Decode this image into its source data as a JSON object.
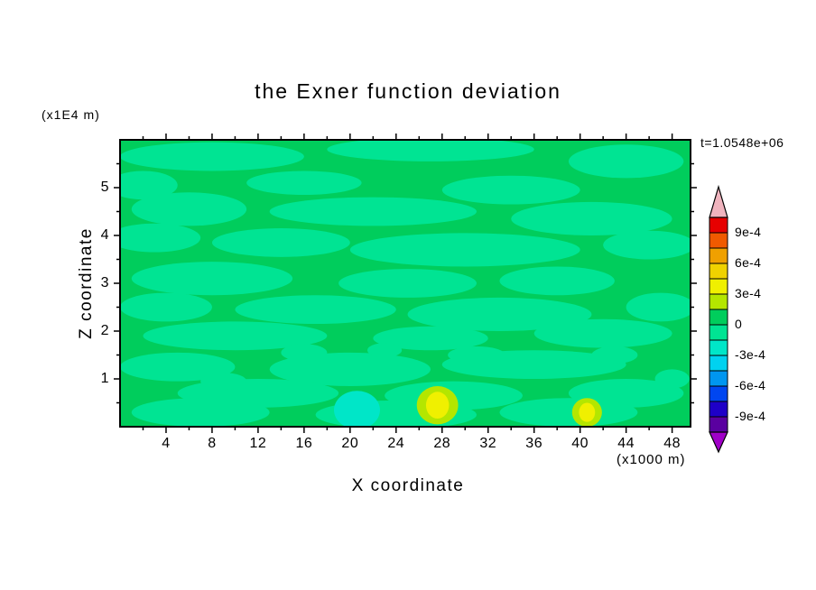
{
  "chart_data": {
    "type": "heatmap",
    "title": "the Exner function deviation",
    "time": "t=1.0548e+06",
    "xlabel": "X coordinate",
    "x_unit": "(x1000 m)",
    "ylabel": "Z coordinate",
    "y_unit": "(x1E4 m)",
    "x_ticks": [
      4,
      8,
      12,
      16,
      20,
      24,
      28,
      32,
      36,
      40,
      44,
      48
    ],
    "y_ticks": [
      1,
      2,
      3,
      4,
      5
    ],
    "x_range": [
      0,
      49.6
    ],
    "z_range": [
      0,
      6
    ],
    "base_color": "#00cd5c",
    "colorbar": {
      "labels": [
        "9e-4",
        "6e-4",
        "3e-4",
        "0",
        "-3e-4",
        "-6e-4",
        "-9e-4"
      ],
      "band_colors": [
        "#e60000",
        "#f05a00",
        "#f0a000",
        "#f0d200",
        "#f0f000",
        "#b4e600",
        "#00cd5c",
        "#00e493",
        "#00e6c8",
        "#00d2f0",
        "#0096f0",
        "#0046f0",
        "#1e00c8",
        "#5a00a0"
      ],
      "over_color": "#f0b4be",
      "under_color": "#a000c8"
    },
    "blob_groups": [
      {
        "color": "#00e493",
        "ellipses": [
          [
            8,
            5.65,
            8,
            0.3
          ],
          [
            27,
            5.8,
            9,
            0.25
          ],
          [
            44,
            5.55,
            5,
            0.35
          ],
          [
            2,
            5.05,
            3,
            0.3
          ],
          [
            16,
            5.1,
            5,
            0.25
          ],
          [
            34,
            4.95,
            6,
            0.3
          ],
          [
            6,
            4.55,
            5,
            0.35
          ],
          [
            22,
            4.5,
            9,
            0.3
          ],
          [
            41,
            4.35,
            7,
            0.35
          ],
          [
            3,
            3.95,
            4,
            0.3
          ],
          [
            14,
            3.85,
            6,
            0.3
          ],
          [
            30,
            3.7,
            10,
            0.35
          ],
          [
            46,
            3.8,
            4,
            0.3
          ],
          [
            8,
            3.1,
            7,
            0.35
          ],
          [
            25,
            3.0,
            6,
            0.3
          ],
          [
            38,
            3.05,
            5,
            0.3
          ],
          [
            4,
            2.5,
            4,
            0.3
          ],
          [
            17,
            2.45,
            7,
            0.3
          ],
          [
            33,
            2.35,
            8,
            0.35
          ],
          [
            47,
            2.5,
            3,
            0.3
          ],
          [
            10,
            1.9,
            8,
            0.3
          ],
          [
            27,
            1.85,
            5,
            0.25
          ],
          [
            42,
            1.95,
            6,
            0.3
          ],
          [
            5,
            1.25,
            5,
            0.3
          ],
          [
            20,
            1.2,
            7,
            0.35
          ],
          [
            36,
            1.3,
            8,
            0.3
          ],
          [
            12,
            0.7,
            7,
            0.3
          ],
          [
            29,
            0.65,
            6,
            0.3
          ],
          [
            44,
            0.7,
            5,
            0.3
          ],
          [
            7,
            0.3,
            6,
            0.3
          ],
          [
            24,
            0.25,
            7,
            0.3
          ],
          [
            39,
            0.3,
            6,
            0.3
          ],
          [
            16,
            1.55,
            2,
            0.18
          ],
          [
            31,
            1.5,
            2.5,
            0.18
          ],
          [
            9,
            0.95,
            2,
            0.18
          ],
          [
            23,
            1.6,
            1.5,
            0.15
          ],
          [
            43,
            1.5,
            2,
            0.18
          ],
          [
            48,
            1.0,
            1.5,
            0.2
          ]
        ]
      },
      {
        "color": "#00e6c8",
        "ellipses": [
          [
            20.6,
            0.35,
            2.0,
            0.4
          ]
        ]
      },
      {
        "color": "#b4e600",
        "ellipses": [
          [
            27.6,
            0.45,
            1.8,
            0.4
          ],
          [
            40.6,
            0.3,
            1.3,
            0.3
          ]
        ]
      },
      {
        "color": "#f0f000",
        "ellipses": [
          [
            27.6,
            0.45,
            1.0,
            0.28
          ],
          [
            40.6,
            0.3,
            0.7,
            0.2
          ]
        ]
      }
    ]
  }
}
